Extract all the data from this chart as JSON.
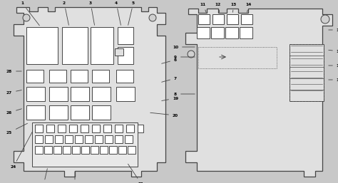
{
  "bg_color": "#c8c8c8",
  "line_color": "#444444",
  "box_color": "#ffffff",
  "body_color": "#e0e0e0",
  "text_color": "#000000",
  "fig_bg": "#c8c8c8"
}
